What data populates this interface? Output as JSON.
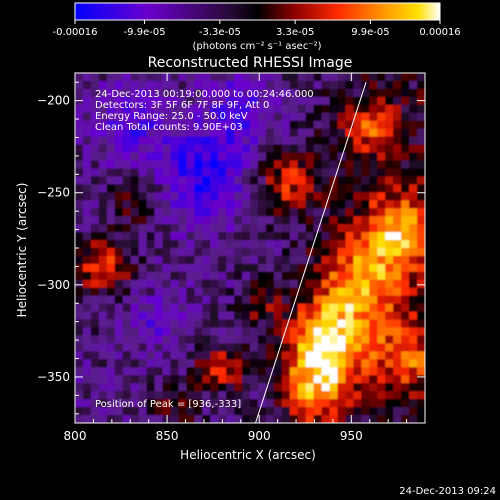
{
  "chart_data": {
    "type": "heatmap",
    "title": "Reconstructed RHESSI Image",
    "xlabel": "Heliocentric X (arcsec)",
    "ylabel": "Heliocentric Y (arcsec)",
    "xlim": [
      800,
      990
    ],
    "ylim": [
      -375,
      -185
    ],
    "x_ticks": [
      "800",
      "850",
      "900",
      "950"
    ],
    "y_ticks": [
      "-200",
      "-250",
      "-300",
      "-350"
    ],
    "colorbar": {
      "tick_labels": [
        "-0.00016",
        "-9.9e-05",
        "-3.3e-05",
        "3.3e-05",
        "9.9e-05",
        "0.00016"
      ],
      "vmin": -0.00016,
      "vmax": 0.00016,
      "unit_label": "(photons cm⁻² s⁻¹ asec⁻²)",
      "colors": [
        "#0000ff",
        "#6a00cc",
        "#5a1a8a",
        "#000000",
        "#8a0000",
        "#ff2a00",
        "#ff8a00",
        "#ffd000",
        "#ffffff"
      ]
    },
    "annotations": [
      "24-Dec-2013 00:19:00.000  to 00:24:46.000",
      "Detectors: 3F 5F 6F 7F 8F 9F, Att 0",
      "Energy Range: 25.0 - 50.0 keV",
      "Clean     Total counts: 9.90E+03"
    ],
    "peak_label": "Position of Peak = [936,-333]",
    "peak": [
      936,
      -333
    ],
    "limb_line": [
      [
        898,
        -375
      ],
      [
        958,
        -190
      ]
    ],
    "timestamp": "24-Dec-2013 09:24"
  }
}
